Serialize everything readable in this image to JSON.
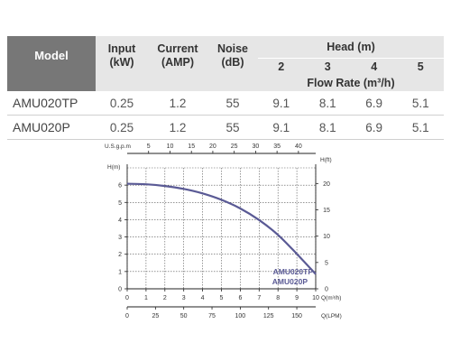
{
  "table": {
    "headers": {
      "model": "Model",
      "input": "Input\n(kW)",
      "current": "Current\n(AMP)",
      "noise": "Noise\n(dB)",
      "head": "Head (m)",
      "flow": "Flow Rate (m³/h)"
    },
    "head_values": [
      "2",
      "3",
      "4",
      "5"
    ],
    "rows": [
      {
        "model": "AMU020TP",
        "input": "0.25",
        "current": "1.2",
        "noise": "55",
        "flows": [
          "9.1",
          "8.1",
          "6.9",
          "5.1"
        ]
      },
      {
        "model": "AMU020P",
        "input": "0.25",
        "current": "1.2",
        "noise": "55",
        "flows": [
          "9.1",
          "8.1",
          "6.9",
          "5.1"
        ]
      }
    ]
  },
  "chart_data": {
    "type": "line",
    "curve_color": "#5a5a95",
    "grid_color": "#555555",
    "x": [
      0,
      1,
      2,
      3,
      4,
      5,
      6,
      7,
      8,
      9,
      10
    ],
    "series": [
      {
        "name": "AMU020TP / AMU020P",
        "values": [
          6.08,
          6.05,
          5.95,
          5.78,
          5.52,
          5.15,
          4.65,
          3.98,
          3.12,
          2.02,
          0.85
        ]
      }
    ],
    "xlim": [
      0,
      10
    ],
    "ylim": [
      0,
      7
    ],
    "axes": {
      "x_m3h": {
        "label": "Q(m³/h)",
        "ticks": [
          "0",
          "1",
          "2",
          "3",
          "4",
          "5",
          "6",
          "7",
          "8",
          "9",
          "10"
        ]
      },
      "x_lpm": {
        "label": "Q(LPM)",
        "ticks": [
          "0",
          "25",
          "50",
          "75",
          "100",
          "125",
          "150"
        ],
        "max": 166.7
      },
      "x_usgpm": {
        "label": "U.S.g.p.m",
        "ticks": [
          "5",
          "10",
          "15",
          "20",
          "25",
          "30",
          "35",
          "40"
        ],
        "max": 44.03
      },
      "y_m": {
        "label": "H(m)",
        "ticks": [
          "0",
          "1",
          "2",
          "3",
          "4",
          "5",
          "6"
        ]
      },
      "y_ft": {
        "label": "H(ft)",
        "ticks": [
          "0",
          "5",
          "10",
          "15",
          "20"
        ],
        "max": 22.97
      }
    },
    "legend": [
      "AMU020TP",
      "AMU020P"
    ],
    "grid": true,
    "legend_position": "bottom-right"
  }
}
